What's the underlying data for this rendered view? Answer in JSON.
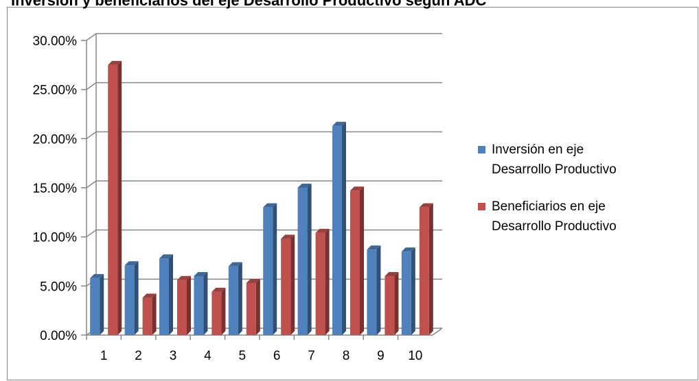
{
  "chart_data": {
    "type": "bar",
    "title": "Inversión y beneficiarios del eje Desarrollo Productivo según ADC",
    "xlabel": "",
    "ylabel": "",
    "categories": [
      "1",
      "2",
      "3",
      "4",
      "5",
      "6",
      "7",
      "8",
      "9",
      "10"
    ],
    "series": [
      {
        "name": "Inversión en eje Desarrollo Productivo",
        "color": "#4f81bd",
        "values": [
          0.058,
          0.071,
          0.078,
          0.06,
          0.07,
          0.13,
          0.15,
          0.213,
          0.087,
          0.085
        ]
      },
      {
        "name": "Beneficiarios en eje Desarrollo Productivo",
        "color": "#c0504d",
        "values": [
          0.275,
          0.038,
          0.056,
          0.044,
          0.053,
          0.098,
          0.104,
          0.147,
          0.06,
          0.13
        ]
      }
    ],
    "ylim": [
      0,
      0.3
    ],
    "yticks": [
      "0.00%",
      "5.00%",
      "10.00%",
      "15.00%",
      "20.00%",
      "25.00%",
      "30.00%"
    ],
    "grid": true,
    "legend": "right"
  }
}
